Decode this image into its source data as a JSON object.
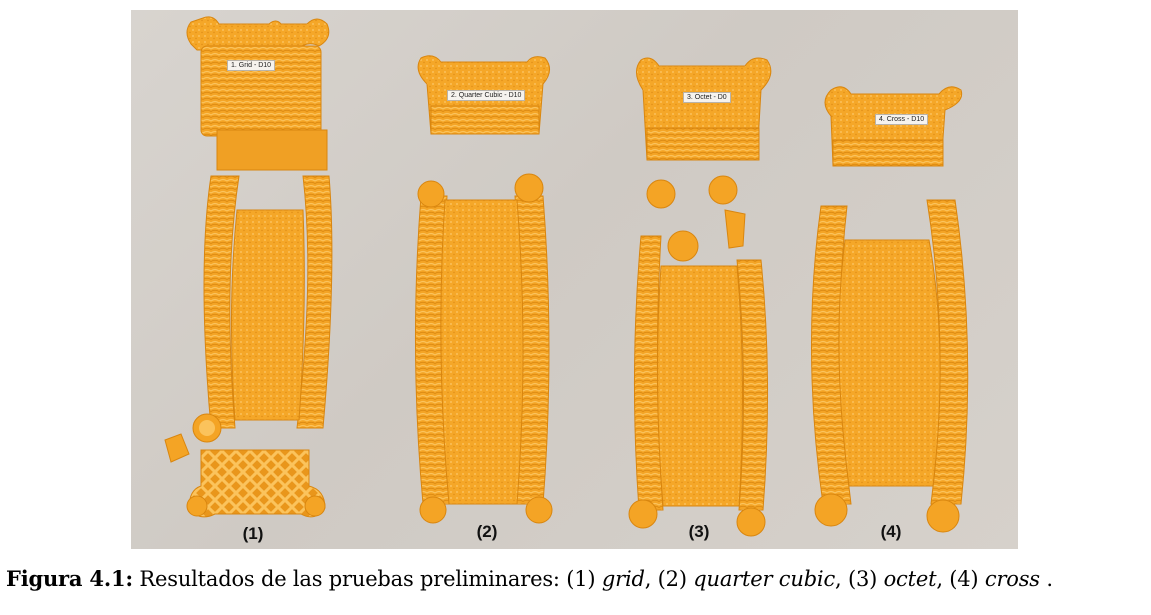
{
  "photo": {
    "specimens": [
      {
        "label": "(1)",
        "tag": "1. Grid - D10"
      },
      {
        "label": "(2)",
        "tag": "2. Quarter Cubic - D10"
      },
      {
        "label": "(3)",
        "tag": "3. Octet - D0"
      },
      {
        "label": "(4)",
        "tag": "4. Cross - D10"
      }
    ]
  },
  "caption": {
    "label": "Figura 4.1:",
    "text_1": " Resultados de las pruebas preliminares: (1) ",
    "grid": "grid",
    "sep_1": ", (2) ",
    "quarter_cubic": "quarter cubic",
    "sep_2": ", (3) ",
    "octet": "octet",
    "sep_3": ", (4) ",
    "cross": "cross",
    "end": " ."
  },
  "colors": {
    "filament": "#f4a425",
    "filament_dark": "#d9860f",
    "filament_light": "#fbc35c",
    "table": "#d3cec8"
  }
}
